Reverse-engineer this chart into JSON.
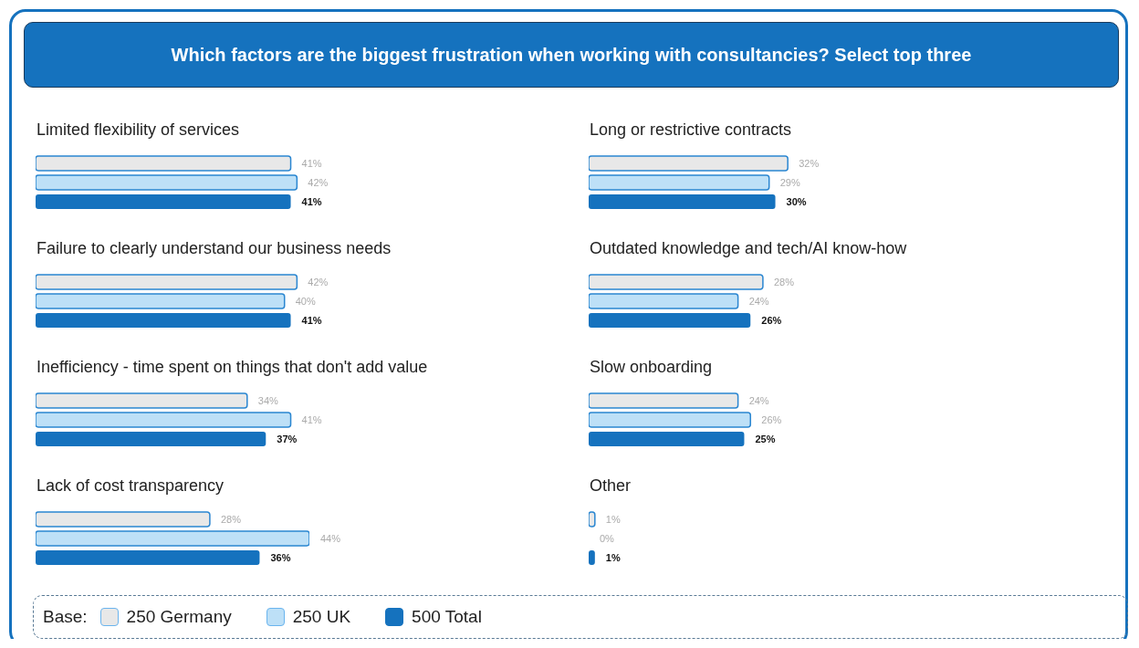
{
  "chart_data": [
    {
      "type": "other",
      "title": "Which factors are the biggest frustration when working with consultancies? Select top three"
    },
    {
      "type": "bar",
      "orientation": "horizontal",
      "title": "Limited flexibility of services",
      "categories": [
        null
      ],
      "series": [
        {
          "color": "#e8e8e8",
          "values": [
            41
          ],
          "value_labels": [
            "41%"
          ]
        },
        {
          "color": "#bde0f7",
          "values": [
            42
          ],
          "value_labels": [
            "42%"
          ]
        },
        {
          "color": "#1572be",
          "values": [
            41
          ],
          "value_labels": [
            "41%"
          ]
        }
      ]
    },
    {
      "type": "bar",
      "orientation": "horizontal",
      "title": "Failure to clearly understand our business needs",
      "categories": [
        null
      ],
      "series": [
        {
          "color": "#e8e8e8",
          "values": [
            42
          ],
          "value_labels": [
            "42%"
          ]
        },
        {
          "color": "#bde0f7",
          "values": [
            40
          ],
          "value_labels": [
            "40%"
          ]
        },
        {
          "color": "#1572be",
          "values": [
            41
          ],
          "value_labels": [
            "41%"
          ]
        }
      ]
    },
    {
      "type": "bar",
      "orientation": "horizontal",
      "title": "Inefficiency - time spent on things that don't add value",
      "categories": [
        null
      ],
      "series": [
        {
          "color": "#e8e8e8",
          "values": [
            34
          ],
          "value_labels": [
            "34%"
          ]
        },
        {
          "color": "#bde0f7",
          "values": [
            41
          ],
          "value_labels": [
            "41%"
          ]
        },
        {
          "color": "#1572be",
          "values": [
            37
          ],
          "value_labels": [
            "37%"
          ]
        }
      ]
    },
    {
      "type": "bar",
      "orientation": "horizontal",
      "title": "Lack of cost transparency",
      "categories": [
        null
      ],
      "series": [
        {
          "color": "#e8e8e8",
          "values": [
            28
          ],
          "value_labels": [
            "28%"
          ]
        },
        {
          "color": "#bde0f7",
          "values": [
            44
          ],
          "value_labels": [
            "44%"
          ]
        },
        {
          "color": "#1572be",
          "values": [
            36
          ],
          "value_labels": [
            "36%"
          ]
        }
      ]
    },
    {
      "type": "bar",
      "orientation": "horizontal",
      "title": "Long or restrictive contracts",
      "categories": [
        null
      ],
      "series": [
        {
          "color": "#e8e8e8",
          "values": [
            32
          ],
          "value_labels": [
            "32%"
          ]
        },
        {
          "color": "#bde0f7",
          "values": [
            29
          ],
          "value_labels": [
            "29%"
          ]
        },
        {
          "color": "#1572be",
          "values": [
            30
          ],
          "value_labels": [
            "30%"
          ]
        }
      ]
    },
    {
      "type": "bar",
      "orientation": "horizontal",
      "title": "Outdated knowledge and tech/AI know-how",
      "categories": [
        null
      ],
      "series": [
        {
          "color": "#e8e8e8",
          "values": [
            28
          ],
          "value_labels": [
            "28%"
          ]
        },
        {
          "color": "#bde0f7",
          "values": [
            24
          ],
          "value_labels": [
            "24%"
          ]
        },
        {
          "color": "#1572be",
          "values": [
            26
          ],
          "value_labels": [
            "26%"
          ]
        }
      ]
    },
    {
      "type": "bar",
      "orientation": "horizontal",
      "title": "Slow onboarding",
      "categories": [
        null
      ],
      "series": [
        {
          "color": "#e8e8e8",
          "values": [
            24
          ],
          "value_labels": [
            "24%"
          ]
        },
        {
          "color": "#bde0f7",
          "values": [
            26
          ],
          "value_labels": [
            "26%"
          ]
        },
        {
          "color": "#1572be",
          "values": [
            25
          ],
          "value_labels": [
            "25%"
          ]
        }
      ]
    },
    {
      "type": "bar",
      "orientation": "horizontal",
      "title": "Other",
      "categories": [
        null
      ],
      "legend_title": "Base:",
      "legend": "bottom",
      "series": [
        {
          "name": "250 Germany",
          "color": "#e8e8e8",
          "values": [
            1
          ],
          "value_labels": [
            "1%"
          ]
        },
        {
          "name": "250 UK",
          "color": "#bde0f7",
          "values": [
            0
          ],
          "value_labels": [
            "0%"
          ]
        },
        {
          "name": "500 Total",
          "color": "#1572be",
          "values": [
            1
          ],
          "value_labels": [
            "1%"
          ]
        }
      ]
    }
  ]
}
